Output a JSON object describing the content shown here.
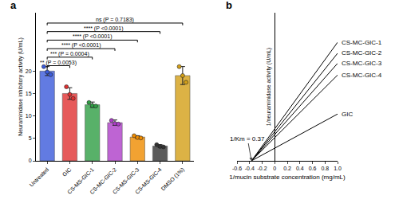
{
  "chart_data": [
    {
      "type": "bar",
      "title": "a",
      "y_label": "Neuraminidase inhibitory activity (U/mL)",
      "categories": [
        "Untreated",
        "GIC",
        "CS-MS-GIC-1",
        "CS-MC-GIC-2",
        "CS-MS-GIC-3",
        "CS-MS-GIC-4",
        "DMSO (1%)"
      ],
      "values": [
        20,
        15,
        12.5,
        8.5,
        5.3,
        3.3,
        19
      ],
      "error": [
        1,
        1.3,
        0.6,
        0.6,
        0.3,
        0.3,
        2
      ],
      "points": [
        [
          21,
          19.8,
          19.2
        ],
        [
          16.5,
          14.8,
          13.9
        ],
        [
          13,
          12.3,
          12.2
        ],
        [
          9,
          8.3,
          8.2
        ],
        [
          5.6,
          5.2,
          5.1
        ],
        [
          3.6,
          3.2,
          3.1
        ],
        [
          21,
          19,
          17.5
        ]
      ],
      "colors": [
        "#3b5bdb",
        "#e03131",
        "#2f9e44",
        "#ae3ec9",
        "#f08c00",
        "#333333",
        "#d4a017"
      ],
      "ylim": [
        0,
        33
      ],
      "yticks": [
        0,
        5,
        10,
        15,
        20
      ],
      "comparisons": [
        {
          "from": 0,
          "to": 1,
          "label": "** (P = 0.0053)"
        },
        {
          "from": 0,
          "to": 2,
          "label": "*** (P = 0.0004)"
        },
        {
          "from": 0,
          "to": 3,
          "label": "**** (P <0.0001)"
        },
        {
          "from": 0,
          "to": 4,
          "label": "**** (P <0.0001)"
        },
        {
          "from": 0,
          "to": 5,
          "label": "**** (P <0.0001)"
        },
        {
          "from": 0,
          "to": 6,
          "label": "ns (P = 0.7183)"
        }
      ]
    },
    {
      "type": "line",
      "title": "b",
      "x_label": "1/mucin substrate concentration (mg/mL)",
      "y_label": "1/neuraminidase activity (U/mL)",
      "series": [
        {
          "name": "CS-MC-GIC-1",
          "x": [
            -0.37,
            1.0
          ],
          "values": [
            0,
            0.8
          ]
        },
        {
          "name": "CS-MC-GIC-2",
          "x": [
            -0.37,
            1.0
          ],
          "values": [
            0,
            0.726
          ]
        },
        {
          "name": "CS-MC-GIC-3",
          "x": [
            -0.37,
            1.0
          ],
          "values": [
            0,
            0.658
          ]
        },
        {
          "name": "CS-MC-GIC-4",
          "x": [
            -0.37,
            1.0
          ],
          "values": [
            0,
            0.579
          ]
        },
        {
          "name": "GIC",
          "x": [
            -0.37,
            1.0
          ],
          "values": [
            0,
            0.316
          ]
        }
      ],
      "color": "#000000",
      "xlim": [
        -0.6,
        1.0
      ],
      "xticks": [
        -0.6,
        -0.4,
        -0.2,
        0,
        0.2,
        0.4,
        0.6,
        0.8,
        {
          "value": 1.0,
          "label": "1.0"
        }
      ],
      "ylim": [
        0,
        1
      ],
      "tick_labels": "x",
      "annotations": [
        {
          "text": "1/Km = 0.37",
          "x": -0.37,
          "y": 0
        }
      ]
    }
  ]
}
